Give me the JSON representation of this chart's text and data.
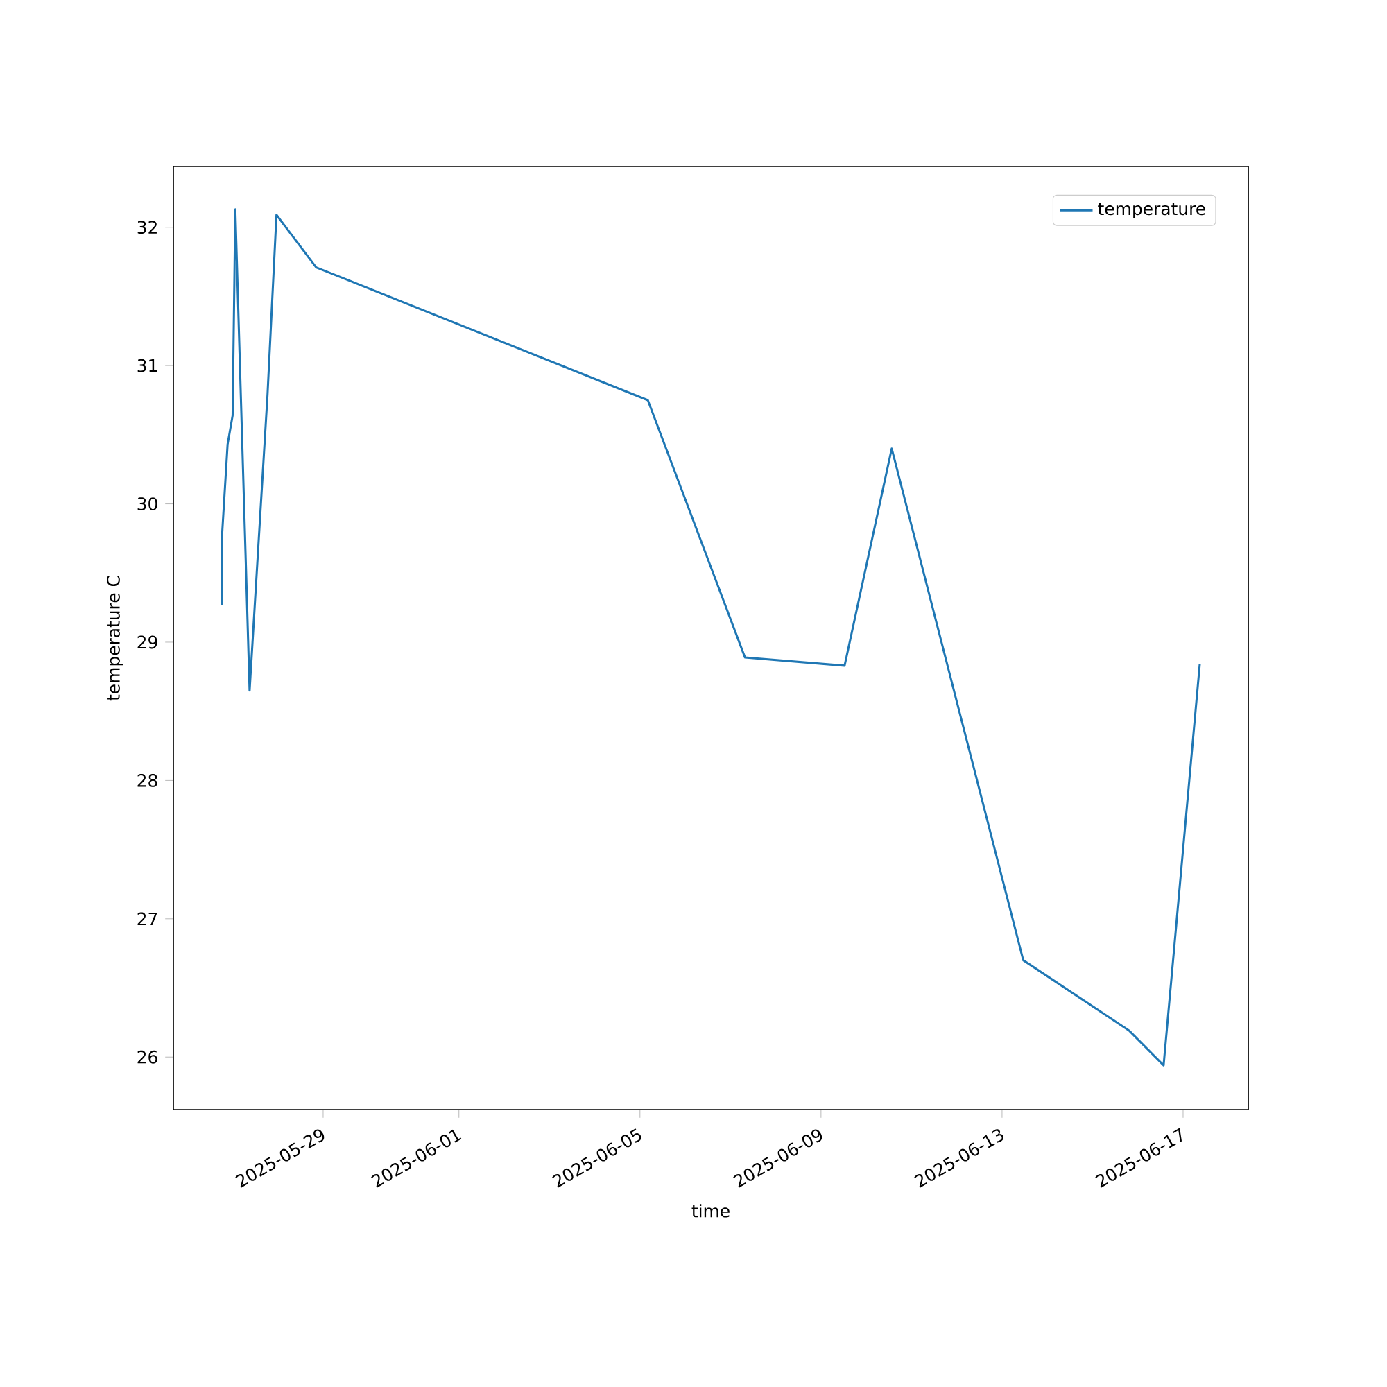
{
  "chart_data": {
    "type": "line",
    "xlabel": "time",
    "ylabel": "temperature C",
    "legend": "top right",
    "x": [
      "2025-05-26T18:15",
      "2025-05-26T18:20",
      "2025-05-26T21:20",
      "2025-05-27T00:00",
      "2025-05-27T01:25",
      "2025-05-27T09:00",
      "2025-05-27T18:30",
      "2025-05-27T23:15",
      "2025-05-28T20:20",
      "2025-06-05T04:10",
      "2025-06-07T07:40",
      "2025-06-09T12:30",
      "2025-06-10T13:30",
      "2025-06-13T11:15",
      "2025-06-15T19:30",
      "2025-06-16T13:40",
      "2025-06-17T08:50"
    ],
    "series": [
      {
        "name": "temperature",
        "color": "#1f77b4",
        "values": [
          29.27,
          29.76,
          30.43,
          30.64,
          32.13,
          28.65,
          30.79,
          32.09,
          31.71,
          30.75,
          28.89,
          28.83,
          30.4,
          26.7,
          26.19,
          25.94,
          28.84
        ]
      }
    ],
    "xlim": [
      "2025-05-25T16:35",
      "2025-06-18T10:35"
    ],
    "ylim": [
      25.62,
      32.44
    ],
    "xticks": [
      "2025-05-29",
      "2025-06-01",
      "2025-06-05",
      "2025-06-09",
      "2025-06-13",
      "2025-06-17"
    ],
    "yticks": [
      26,
      27,
      28,
      29,
      30,
      31,
      32
    ]
  }
}
